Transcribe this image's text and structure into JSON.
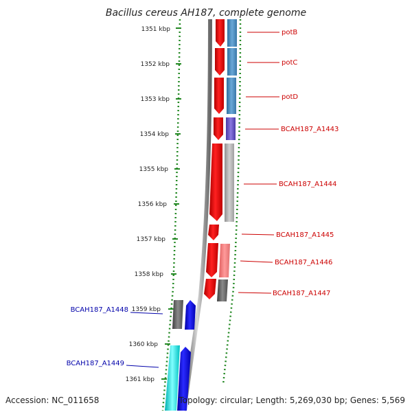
{
  "title": "Bacillus cereus AH187, complete genome",
  "footer": {
    "accession": "Accession: NC_011658",
    "summary": "Topology: circular; Length: 5,269,030 bp; Genes: 5,569"
  },
  "colors": {
    "gene_plus": "#ff0000",
    "gene_minus": "#0000ff",
    "backbone": "#888888",
    "dotted_track": "#228822",
    "label_plus": "#cc0000",
    "label_minus": "#0000aa"
  },
  "ticks": [
    "1351 kbp",
    "1352 kbp",
    "1353 kbp",
    "1354 kbp",
    "1355 kbp",
    "1356 kbp",
    "1357 kbp",
    "1358 kbp",
    "1359 kbp",
    "1360 kbp",
    "1361 kbp"
  ],
  "gene_labels": [
    {
      "text": "potB",
      "strand": "plus"
    },
    {
      "text": "potC",
      "strand": "plus"
    },
    {
      "text": "potD",
      "strand": "plus"
    },
    {
      "text": "BCAH187_A1443",
      "strand": "plus"
    },
    {
      "text": "BCAH187_A1444",
      "strand": "plus"
    },
    {
      "text": "BCAH187_A1445",
      "strand": "plus"
    },
    {
      "text": "BCAH187_A1446",
      "strand": "plus"
    },
    {
      "text": "BCAH187_A1447",
      "strand": "plus"
    },
    {
      "text": "BCAH187_A1448",
      "strand": "minus"
    },
    {
      "text": "BCAH187_A1449",
      "strand": "minus"
    }
  ]
}
